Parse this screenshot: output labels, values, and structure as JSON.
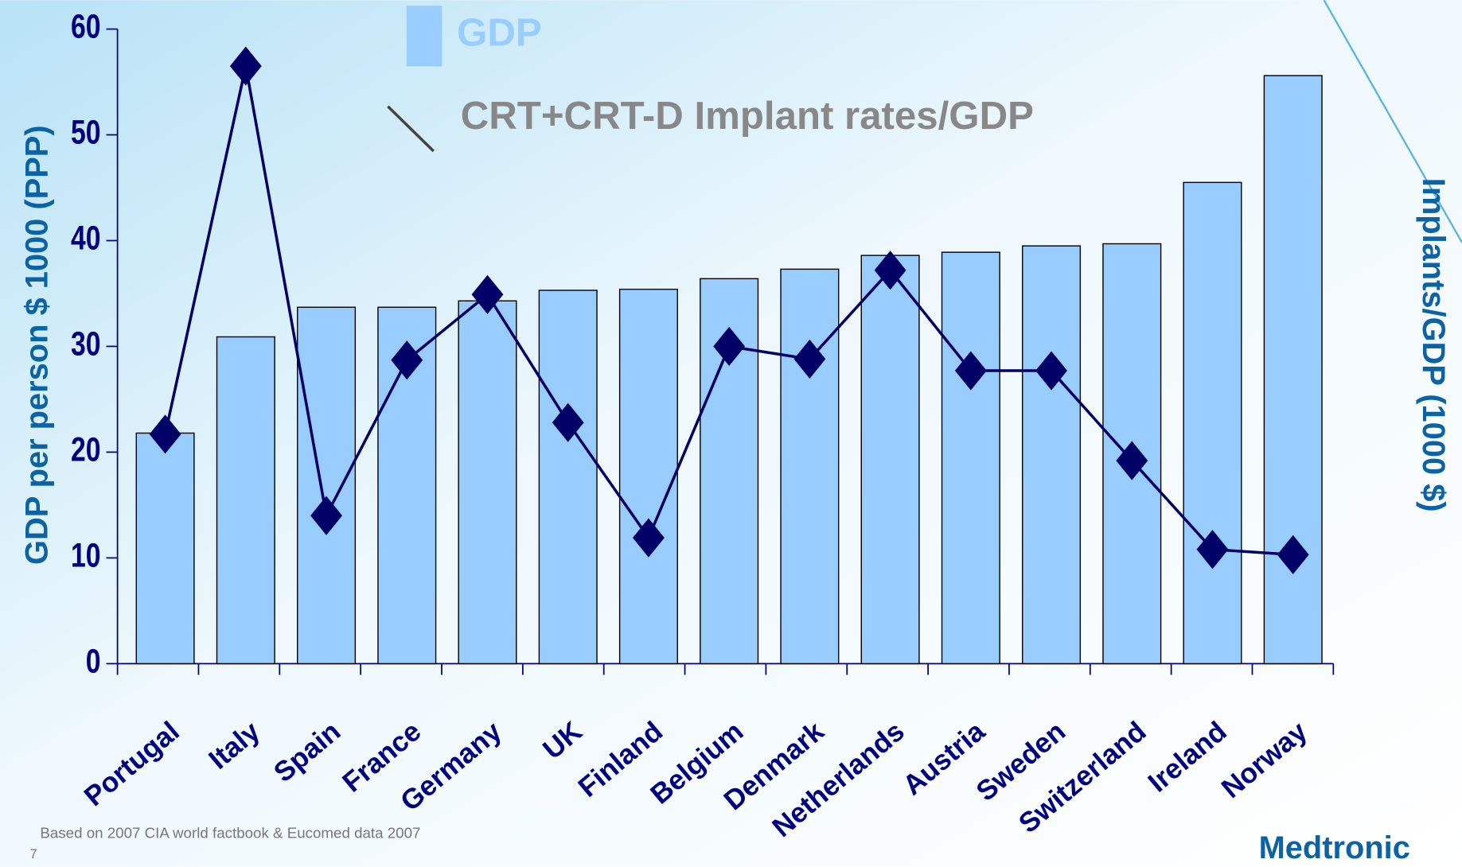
{
  "chart_data": {
    "type": "bar",
    "y_label": "GDP per person $ 1000 (PPP)",
    "y2_label": "Implants/GDP (1000 $)",
    "categories": [
      "Portugal",
      "Italy",
      "Spain",
      "France",
      "Germany",
      "UK",
      "Finland",
      "Belgium",
      "Denmark",
      "Netherlands",
      "Austria",
      "Sweden",
      "Switzerland",
      "Ireland",
      "Norway"
    ],
    "series": [
      {
        "name": "GDP",
        "type": "bar",
        "color": "#99ccff",
        "values": [
          21.8,
          30.9,
          33.7,
          33.7,
          34.3,
          35.3,
          35.4,
          36.4,
          37.3,
          38.6,
          38.9,
          39.5,
          39.7,
          45.5,
          55.6
        ]
      },
      {
        "name": "CRT+CRT-D Implant rates/GDP",
        "type": "line",
        "axis": "y2",
        "color": "#000066",
        "values": [
          21.7,
          56.5,
          14,
          28.7,
          34.9,
          22.8,
          11.9,
          30,
          28.8,
          37.2,
          27.7,
          27.7,
          19.2,
          10.8,
          10.3
        ]
      }
    ],
    "ylim": [
      0,
      60
    ],
    "yticks": [
      0,
      10,
      20,
      30,
      40,
      50,
      60
    ],
    "y2lim": [
      0,
      60
    ],
    "note": "Based on 2007 CIA world factbook & Eucomed data 2007",
    "page_number": "7",
    "logo": "Medtronic"
  }
}
